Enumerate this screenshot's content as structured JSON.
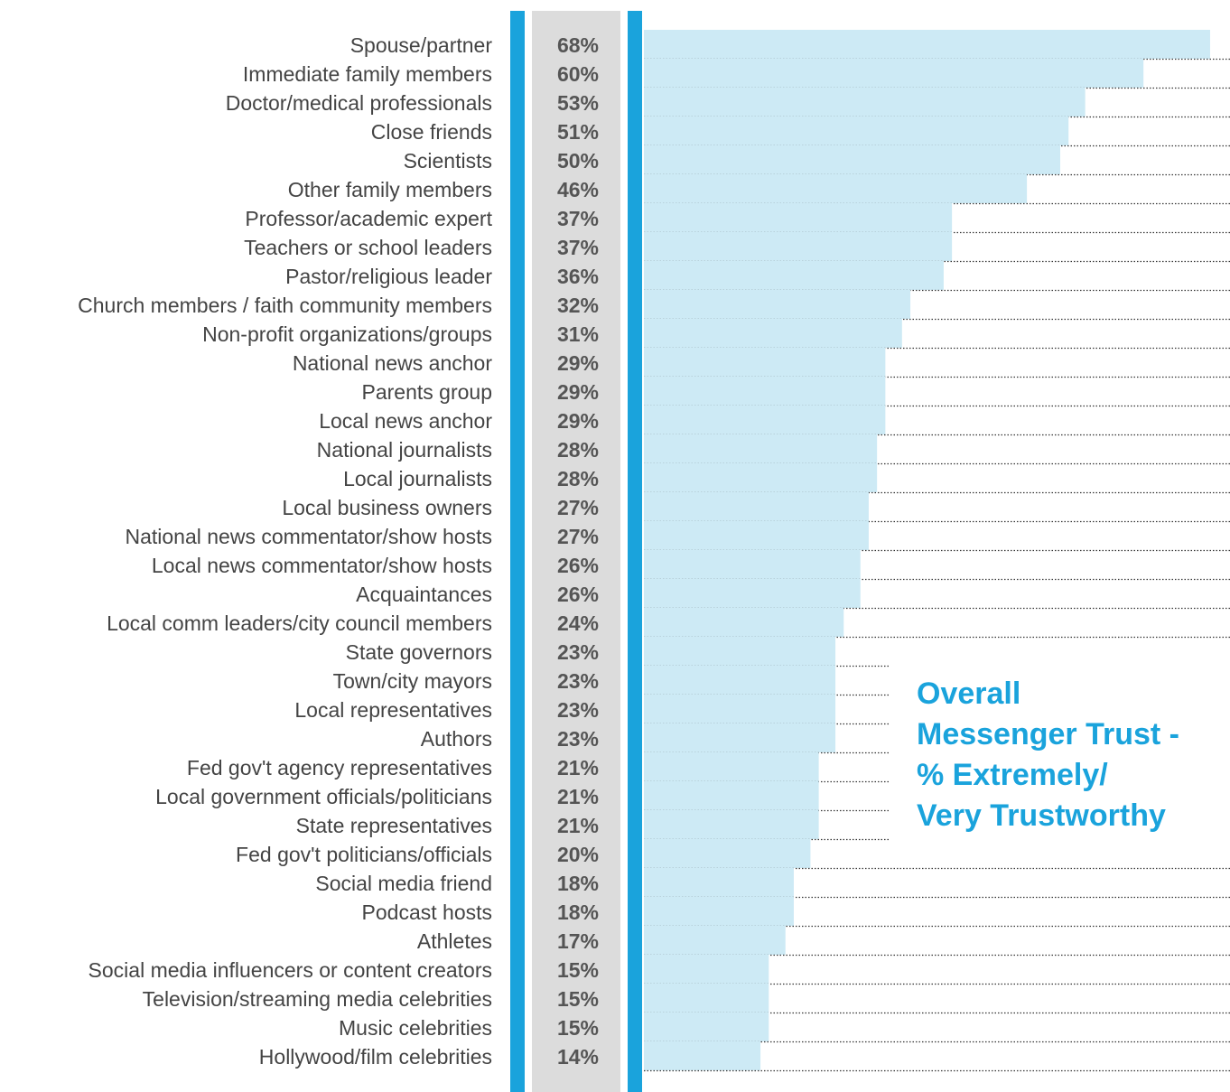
{
  "chart_data": {
    "type": "bar",
    "orientation": "horizontal",
    "title": [
      "Overall",
      "Messenger Trust -",
      "% Extremely/",
      "Very Trustworthy"
    ],
    "categories": [
      "Spouse/partner",
      "Immediate family members",
      "Doctor/medical professionals",
      "Close friends",
      "Scientists",
      "Other family members",
      "Professor/academic expert",
      "Teachers or school leaders",
      "Pastor/religious leader",
      "Church members / faith community members",
      "Non-profit organizations/groups",
      "National news anchor",
      "Parents group",
      "Local news anchor",
      "National journalists",
      "Local journalists",
      "Local business owners",
      "National news commentator/show hosts",
      "Local news commentator/show hosts",
      "Acquaintances",
      "Local comm leaders/city council members",
      "State governors",
      "Town/city mayors",
      "Local representatives",
      "Authors",
      "Fed gov't agency representatives",
      "Local government officials/politicians",
      "State representatives",
      "Fed gov't politicians/officials",
      "Social media friend",
      "Podcast hosts",
      "Athletes",
      "Social media influencers or content creators",
      "Television/streaming media celebrities",
      "Music celebrities",
      "Hollywood/film celebrities"
    ],
    "values": [
      68,
      60,
      53,
      51,
      50,
      46,
      37,
      37,
      36,
      32,
      31,
      29,
      29,
      29,
      28,
      28,
      27,
      27,
      26,
      26,
      24,
      23,
      23,
      23,
      23,
      21,
      21,
      21,
      20,
      18,
      18,
      17,
      15,
      15,
      15,
      14
    ],
    "value_labels": [
      "68%",
      "60%",
      "53%",
      "51%",
      "50%",
      "46%",
      "37%",
      "37%",
      "36%",
      "32%",
      "31%",
      "29%",
      "29%",
      "29%",
      "28%",
      "28%",
      "27%",
      "27%",
      "26%",
      "26%",
      "24%",
      "23%",
      "23%",
      "23%",
      "23%",
      "21%",
      "21%",
      "21%",
      "20%",
      "18%",
      "18%",
      "17%",
      "15%",
      "15%",
      "15%",
      "14%"
    ],
    "color": "#cdeaf5"
  }
}
